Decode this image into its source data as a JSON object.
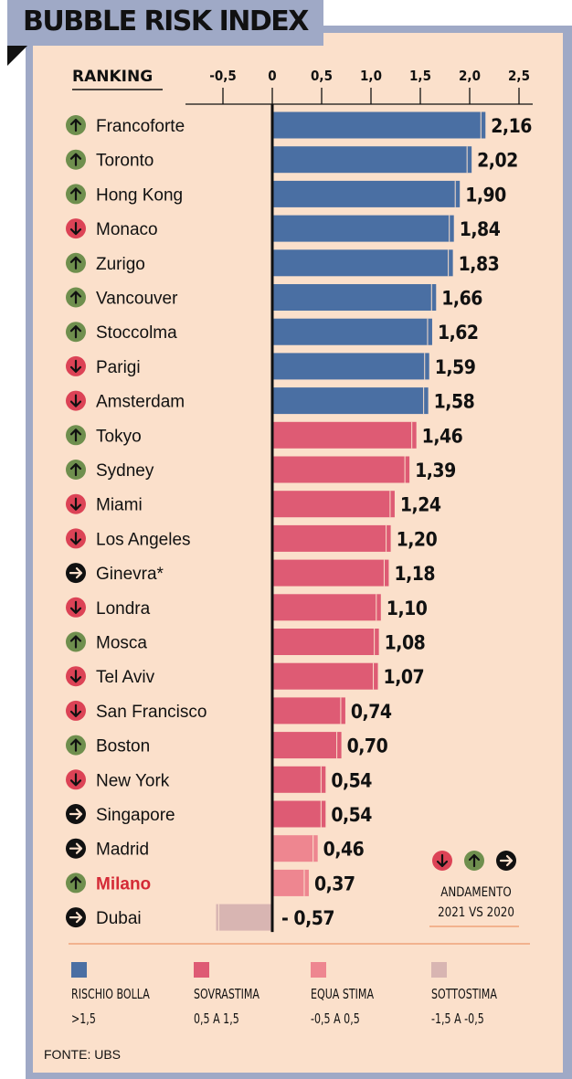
{
  "title": "BUBBLE RISK INDEX",
  "ranking_label": "RANKING",
  "source": "FONTE: UBS",
  "andamento": {
    "line1": "ANDAMENTO",
    "line2": "2021 VS 2020"
  },
  "colors": {
    "rischio_bolla": "#4a6fa3",
    "sovrastima": "#de5b74",
    "equa_stima": "#ee8690",
    "sottostima": "#d8b5b2",
    "up": "#6f8f4e",
    "down": "#dc4356",
    "flat": "#111111",
    "highlight": "#d42a36"
  },
  "legend": [
    {
      "key": "rischio_bolla",
      "label": "RISCHIO BOLLA",
      "range": ">1,5"
    },
    {
      "key": "sovrastima",
      "label": "SOVRASTIMA",
      "range": "0,5 A 1,5"
    },
    {
      "key": "equa_stima",
      "label": "EQUA STIMA",
      "range": "-0,5 A 0,5"
    },
    {
      "key": "sottostima",
      "label": "SOTTOSTIMA",
      "range": "-1,5 A -0,5"
    }
  ],
  "chart_data": {
    "type": "bar",
    "orientation": "horizontal",
    "xlim": [
      -0.75,
      2.75
    ],
    "x_ticks": [
      -0.5,
      0,
      0.5,
      1.0,
      1.5,
      2.0,
      2.5
    ],
    "x_tick_labels": [
      "-0,5",
      "0",
      "0,5",
      "1,0",
      "1,5",
      "2,0",
      "2,5"
    ],
    "categories": [
      "Francoforte",
      "Toronto",
      "Hong Kong",
      "Monaco",
      "Zurigo",
      "Vancouver",
      "Stoccolma",
      "Parigi",
      "Amsterdam",
      "Tokyo",
      "Sydney",
      "Miami",
      "Los Angeles",
      "Ginevra*",
      "Londra",
      "Mosca",
      "Tel Aviv",
      "San Francisco",
      "Boston",
      "New York",
      "Singapore",
      "Madrid",
      "Milano",
      "Dubai"
    ],
    "values": [
      2.16,
      2.02,
      1.9,
      1.84,
      1.83,
      1.66,
      1.62,
      1.59,
      1.58,
      1.46,
      1.39,
      1.24,
      1.2,
      1.18,
      1.1,
      1.08,
      1.07,
      0.74,
      0.7,
      0.54,
      0.54,
      0.46,
      0.37,
      -0.57
    ],
    "value_labels": [
      "2,16",
      "2,02",
      "1,90",
      "1,84",
      "1,83",
      "1,66",
      "1,62",
      "1,59",
      "1,58",
      "1,46",
      "1,39",
      "1,24",
      "1,20",
      "1,18",
      "1,10",
      "1,08",
      "1,07",
      "0,74",
      "0,70",
      "0,54",
      "0,54",
      "0,46",
      "0,37",
      "- 0,57"
    ],
    "trend_2021_vs_2020": [
      "up",
      "up",
      "up",
      "down",
      "up",
      "up",
      "up",
      "down",
      "down",
      "up",
      "up",
      "down",
      "down",
      "flat",
      "down",
      "up",
      "down",
      "down",
      "up",
      "down",
      "flat",
      "flat",
      "up",
      "flat"
    ],
    "category_class": [
      "rischio_bolla",
      "rischio_bolla",
      "rischio_bolla",
      "rischio_bolla",
      "rischio_bolla",
      "rischio_bolla",
      "rischio_bolla",
      "rischio_bolla",
      "rischio_bolla",
      "sovrastima",
      "sovrastima",
      "sovrastima",
      "sovrastima",
      "sovrastima",
      "sovrastima",
      "sovrastima",
      "sovrastima",
      "sovrastima",
      "sovrastima",
      "sovrastima",
      "sovrastima",
      "equa_stima",
      "equa_stima",
      "sottostima"
    ],
    "highlighted_category": "Milano",
    "grid": false
  }
}
